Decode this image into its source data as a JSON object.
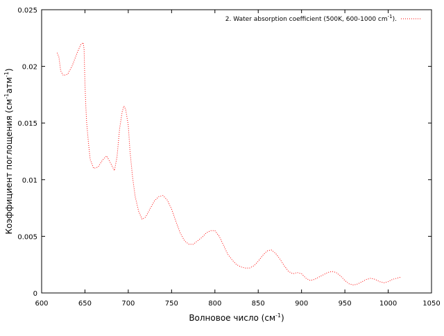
{
  "chart_data": {
    "type": "line",
    "title": "",
    "xlabel": "Волновое число (см",
    "xlabel_sup": "-1",
    "xlabel_end": ")",
    "ylabel": "Коэффициент поглощения (см",
    "ylabel_sup1": "-1",
    "ylabel_mid": "атм",
    "ylabel_sup2": "-1",
    "ylabel_end": ")",
    "xlim": [
      600,
      1050
    ],
    "ylim": [
      0,
      0.025
    ],
    "x_ticks": [
      600,
      650,
      700,
      750,
      800,
      850,
      900,
      950,
      1000,
      1050
    ],
    "y_ticks": [
      0,
      0.005,
      0.01,
      0.015,
      0.02,
      0.025
    ],
    "y_tick_labels": [
      "0",
      "0.005",
      "0.01",
      "0.015",
      "0.02",
      "0.025"
    ],
    "grid": false,
    "legend_position": "top-right",
    "series": [
      {
        "name": "2. Water absorption coefficient (500K, 600-1000 cm",
        "name_sup": "-1",
        "name_end": ").",
        "color": "#ff0000",
        "line_style": "dotted",
        "x": [
          618,
          620,
          622,
          625,
          630,
          635,
          640,
          645,
          648,
          649,
          650,
          651,
          652,
          654,
          656,
          660,
          665,
          670,
          675,
          680,
          684,
          687,
          690,
          693,
          695,
          697,
          700,
          702,
          705,
          708,
          712,
          716,
          720,
          725,
          730,
          735,
          740,
          745,
          750,
          755,
          760,
          765,
          770,
          775,
          780,
          785,
          790,
          795,
          800,
          805,
          810,
          815,
          820,
          825,
          830,
          835,
          840,
          845,
          850,
          855,
          860,
          865,
          870,
          875,
          880,
          885,
          890,
          895,
          900,
          905,
          910,
          915,
          920,
          925,
          930,
          935,
          940,
          945,
          950,
          955,
          960,
          965,
          970,
          975,
          980,
          985,
          990,
          995,
          1000,
          1005,
          1010,
          1015
        ],
        "y": [
          0.0212,
          0.0208,
          0.0196,
          0.0192,
          0.0193,
          0.02,
          0.021,
          0.0219,
          0.0221,
          0.0215,
          0.0185,
          0.0165,
          0.015,
          0.0133,
          0.0118,
          0.011,
          0.0111,
          0.0117,
          0.0121,
          0.0114,
          0.0108,
          0.012,
          0.0145,
          0.016,
          0.0165,
          0.0162,
          0.0148,
          0.0125,
          0.0102,
          0.0085,
          0.0072,
          0.0065,
          0.0067,
          0.0074,
          0.0081,
          0.0085,
          0.0086,
          0.0082,
          0.0074,
          0.0063,
          0.0053,
          0.0046,
          0.0043,
          0.0043,
          0.0046,
          0.0049,
          0.0053,
          0.0055,
          0.0055,
          0.005,
          0.0042,
          0.0034,
          0.0029,
          0.0025,
          0.0023,
          0.0022,
          0.0022,
          0.0024,
          0.0028,
          0.0033,
          0.0037,
          0.0038,
          0.0035,
          0.003,
          0.0024,
          0.0019,
          0.0017,
          0.0018,
          0.0017,
          0.0013,
          0.0011,
          0.0012,
          0.0014,
          0.0016,
          0.0018,
          0.0019,
          0.0018,
          0.0015,
          0.0011,
          0.0008,
          0.0007,
          0.0008,
          0.001,
          0.0012,
          0.0013,
          0.0012,
          0.001,
          0.0009,
          0.001,
          0.0012,
          0.0013,
          0.0014
        ]
      }
    ]
  }
}
